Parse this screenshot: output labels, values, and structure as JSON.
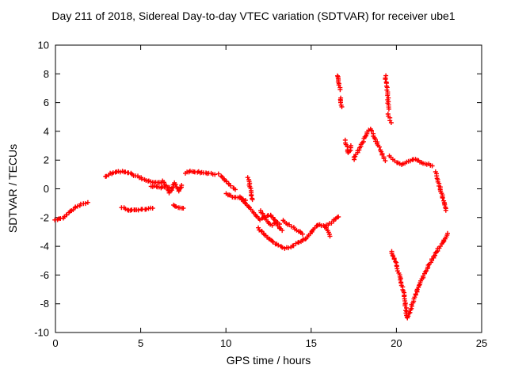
{
  "chart_data": {
    "type": "scatter",
    "title": "Day 211 of 2018, Sidereal Day-to-day VTEC variation (SDTVAR) for receiver ube1",
    "xlabel": "GPS time / hours",
    "ylabel": "SDTVAR / TECUs",
    "xlim": [
      0,
      25
    ],
    "ylim": [
      -10,
      10
    ],
    "x_ticks": [
      0,
      5,
      10,
      15,
      20,
      25
    ],
    "y_ticks": [
      -10,
      -8,
      -6,
      -4,
      -2,
      0,
      2,
      4,
      6,
      8,
      10
    ],
    "grid": false,
    "legend": "none",
    "marker": "plus",
    "marker_color": "#ff0000",
    "series": [
      {
        "name": "SDTVAR",
        "segments": [
          [
            [
              0.0,
              -2.2
            ],
            [
              0.2,
              -2.1
            ],
            [
              0.45,
              -2.0
            ],
            [
              0.7,
              -1.8
            ],
            [
              0.95,
              -1.5
            ],
            [
              1.2,
              -1.25
            ],
            [
              1.5,
              -1.1
            ],
            [
              1.75,
              -1.0
            ],
            [
              1.9,
              -0.95
            ]
          ],
          [
            [
              2.9,
              0.85
            ],
            [
              3.2,
              1.05
            ],
            [
              3.5,
              1.15
            ],
            [
              3.8,
              1.2
            ],
            [
              4.1,
              1.15
            ],
            [
              4.4,
              1.05
            ],
            [
              4.7,
              0.9
            ],
            [
              5.0,
              0.75
            ],
            [
              5.3,
              0.6
            ],
            [
              5.6,
              0.5
            ],
            [
              5.9,
              0.45
            ],
            [
              6.2,
              0.4
            ]
          ],
          [
            [
              3.9,
              -1.3
            ],
            [
              4.2,
              -1.45
            ],
            [
              4.6,
              -1.5
            ],
            [
              5.0,
              -1.45
            ],
            [
              5.35,
              -1.4
            ],
            [
              5.7,
              -1.35
            ]
          ],
          [
            [
              5.6,
              0.2
            ],
            [
              5.9,
              0.15
            ],
            [
              6.2,
              0.1
            ],
            [
              6.5,
              0.15
            ],
            [
              6.7,
              0.1
            ]
          ],
          [
            [
              6.3,
              0.55
            ],
            [
              6.45,
              0.3
            ],
            [
              6.6,
              0.0
            ],
            [
              6.7,
              -0.3
            ],
            [
              6.8,
              -0.1
            ],
            [
              6.9,
              0.25
            ],
            [
              7.0,
              0.45
            ],
            [
              7.1,
              0.15
            ],
            [
              7.2,
              -0.15
            ],
            [
              7.3,
              0.05
            ],
            [
              7.4,
              0.25
            ]
          ],
          [
            [
              6.9,
              -1.15
            ],
            [
              7.1,
              -1.25
            ],
            [
              7.3,
              -1.3
            ],
            [
              7.5,
              -1.35
            ]
          ],
          [
            [
              7.6,
              1.1
            ],
            [
              7.9,
              1.2
            ],
            [
              8.2,
              1.2
            ],
            [
              8.5,
              1.15
            ],
            [
              8.8,
              1.1
            ],
            [
              9.1,
              1.05
            ],
            [
              9.35,
              1.0
            ]
          ],
          [
            [
              9.6,
              1.0
            ],
            [
              9.8,
              0.8
            ],
            [
              10.0,
              0.55
            ],
            [
              10.2,
              0.3
            ],
            [
              10.4,
              0.1
            ],
            [
              10.55,
              -0.05
            ]
          ],
          [
            [
              10.0,
              -0.35
            ],
            [
              10.3,
              -0.5
            ],
            [
              10.6,
              -0.6
            ],
            [
              10.9,
              -0.7
            ],
            [
              11.15,
              -0.8
            ]
          ],
          [
            [
              11.3,
              0.8
            ],
            [
              11.38,
              0.4
            ],
            [
              11.44,
              0.0
            ],
            [
              11.5,
              -0.4
            ],
            [
              11.55,
              -0.75
            ]
          ],
          [
            [
              10.8,
              -0.55
            ],
            [
              11.1,
              -0.95
            ],
            [
              11.4,
              -1.35
            ],
            [
              11.7,
              -1.75
            ],
            [
              12.0,
              -2.15
            ],
            [
              12.25,
              -1.95
            ],
            [
              12.45,
              -2.25
            ],
            [
              12.7,
              -2.55
            ],
            [
              12.9,
              -2.35
            ],
            [
              13.1,
              -2.65
            ],
            [
              13.3,
              -2.9
            ]
          ],
          [
            [
              11.9,
              -2.75
            ],
            [
              12.2,
              -3.1
            ],
            [
              12.5,
              -3.45
            ],
            [
              12.8,
              -3.75
            ],
            [
              13.1,
              -3.95
            ],
            [
              13.45,
              -4.15
            ],
            [
              13.8,
              -4.05
            ],
            [
              14.1,
              -3.85
            ],
            [
              14.4,
              -3.65
            ],
            [
              14.65,
              -3.5
            ]
          ],
          [
            [
              12.0,
              -1.55
            ],
            [
              12.3,
              -1.95
            ],
            [
              12.6,
              -1.8
            ],
            [
              12.9,
              -2.2
            ],
            [
              13.15,
              -2.45
            ]
          ],
          [
            [
              13.35,
              -2.2
            ],
            [
              13.65,
              -2.45
            ],
            [
              13.95,
              -2.7
            ],
            [
              14.25,
              -2.95
            ],
            [
              14.5,
              -3.15
            ]
          ],
          [
            [
              14.7,
              -3.45
            ],
            [
              14.95,
              -3.15
            ],
            [
              15.15,
              -2.8
            ],
            [
              15.35,
              -2.55
            ]
          ],
          [
            [
              15.4,
              -2.5
            ],
            [
              15.7,
              -2.6
            ],
            [
              16.0,
              -2.5
            ],
            [
              16.2,
              -2.35
            ],
            [
              16.45,
              -2.1
            ],
            [
              16.6,
              -1.95
            ]
          ],
          [
            [
              15.85,
              -2.7
            ],
            [
              16.0,
              -3.0
            ],
            [
              16.1,
              -3.3
            ]
          ],
          [
            [
              16.55,
              7.9
            ],
            [
              16.6,
              7.55
            ],
            [
              16.65,
              7.2
            ],
            [
              16.7,
              6.9
            ]
          ],
          [
            [
              16.72,
              6.35
            ],
            [
              16.76,
              6.0
            ],
            [
              16.8,
              5.7
            ]
          ],
          [
            [
              17.0,
              3.35
            ],
            [
              17.05,
              3.05
            ],
            [
              17.12,
              2.75
            ],
            [
              17.2,
              2.5
            ],
            [
              17.28,
              2.7
            ],
            [
              17.33,
              3.0
            ]
          ],
          [
            [
              17.5,
              2.05
            ],
            [
              17.7,
              2.5
            ],
            [
              17.9,
              2.95
            ],
            [
              18.1,
              3.45
            ],
            [
              18.3,
              3.95
            ],
            [
              18.45,
              4.2
            ],
            [
              18.55,
              4.0
            ],
            [
              18.65,
              3.7
            ],
            [
              18.8,
              3.35
            ],
            [
              18.95,
              3.0
            ],
            [
              19.1,
              2.6
            ],
            [
              19.25,
              2.2
            ],
            [
              19.35,
              1.95
            ]
          ],
          [
            [
              19.35,
              7.85
            ],
            [
              19.39,
              7.45
            ],
            [
              19.43,
              7.05
            ],
            [
              19.47,
              6.6
            ],
            [
              19.5,
              6.2
            ],
            [
              19.53,
              5.85
            ],
            [
              19.56,
              5.55
            ]
          ],
          [
            [
              19.5,
              5.2
            ],
            [
              19.6,
              4.9
            ],
            [
              19.7,
              4.6
            ]
          ],
          [
            [
              19.6,
              2.25
            ],
            [
              19.8,
              2.05
            ],
            [
              20.0,
              1.85
            ],
            [
              20.2,
              1.75
            ]
          ],
          [
            [
              20.3,
              1.7
            ],
            [
              20.6,
              1.85
            ],
            [
              20.9,
              2.0
            ],
            [
              21.1,
              2.1
            ],
            [
              21.3,
              1.95
            ],
            [
              21.6,
              1.8
            ],
            [
              21.9,
              1.7
            ],
            [
              22.1,
              1.6
            ]
          ],
          [
            [
              22.3,
              1.15
            ],
            [
              22.4,
              0.75
            ],
            [
              22.5,
              0.35
            ],
            [
              22.6,
              -0.1
            ],
            [
              22.7,
              -0.55
            ],
            [
              22.8,
              -1.05
            ],
            [
              22.9,
              -1.5
            ]
          ],
          [
            [
              19.7,
              -4.35
            ],
            [
              19.85,
              -4.8
            ],
            [
              20.0,
              -5.3
            ],
            [
              20.1,
              -5.7
            ],
            [
              20.2,
              -6.1
            ],
            [
              20.3,
              -6.6
            ],
            [
              20.4,
              -7.1
            ],
            [
              20.5,
              -7.8
            ],
            [
              20.55,
              -8.3
            ],
            [
              20.6,
              -8.8
            ],
            [
              20.65,
              -9.0
            ],
            [
              20.75,
              -8.7
            ],
            [
              20.85,
              -8.3
            ],
            [
              21.0,
              -7.8
            ],
            [
              21.15,
              -7.3
            ],
            [
              21.3,
              -6.85
            ],
            [
              21.5,
              -6.3
            ],
            [
              21.7,
              -5.8
            ],
            [
              21.9,
              -5.35
            ],
            [
              22.1,
              -4.9
            ],
            [
              22.3,
              -4.5
            ],
            [
              22.5,
              -4.1
            ],
            [
              22.7,
              -3.75
            ],
            [
              22.85,
              -3.45
            ],
            [
              23.0,
              -3.1
            ]
          ]
        ]
      }
    ]
  }
}
